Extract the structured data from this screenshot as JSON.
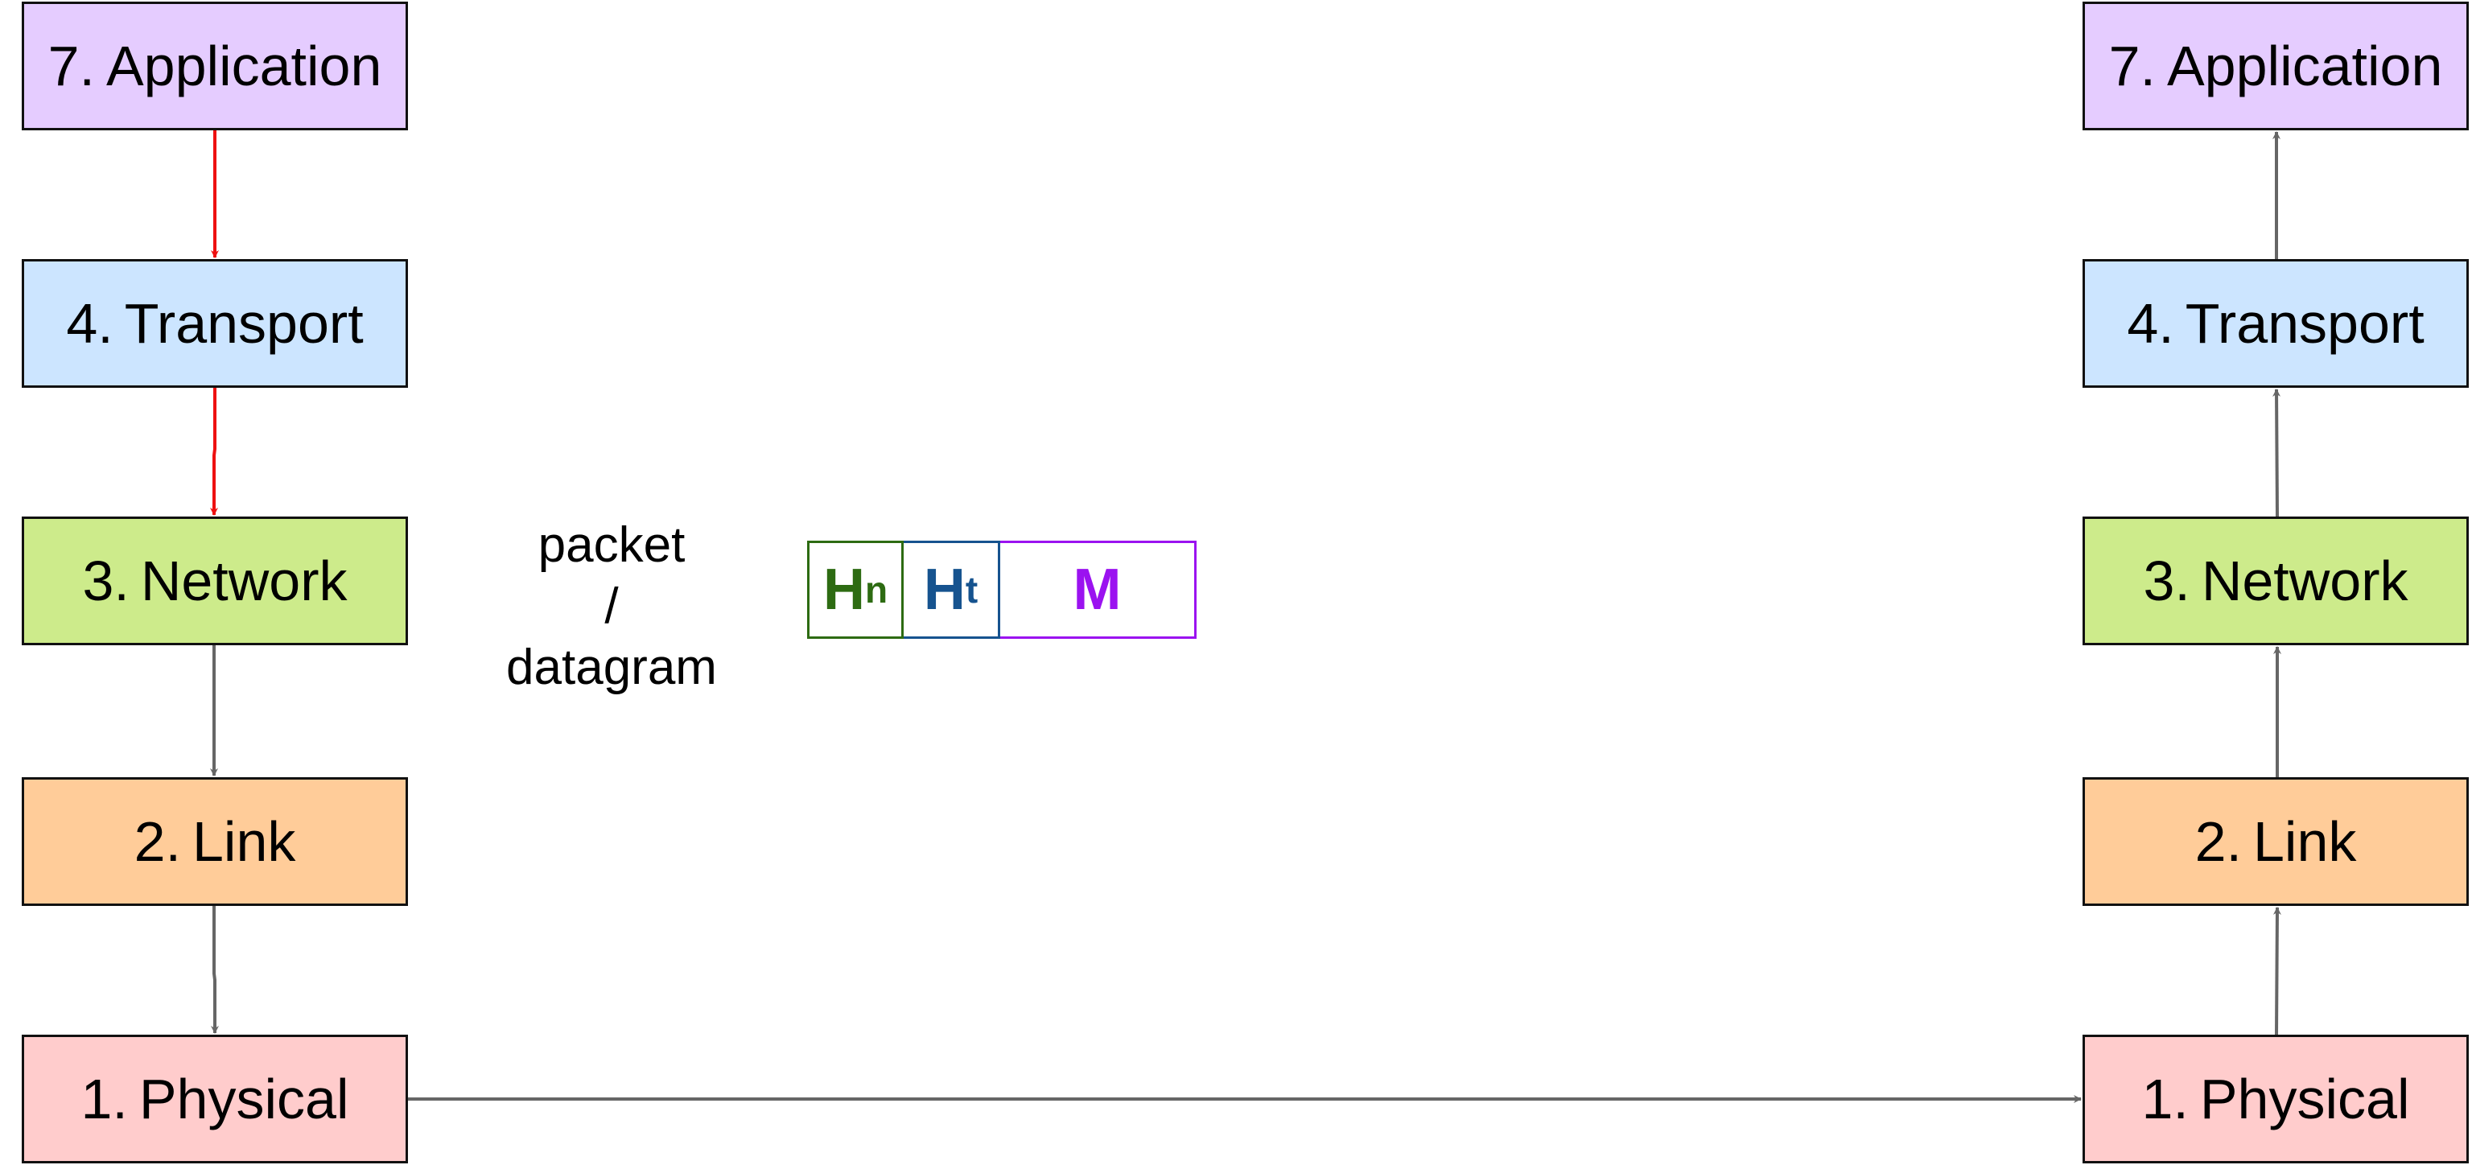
{
  "left_stack": {
    "application": {
      "num": "7.",
      "label": "Application"
    },
    "transport": {
      "num": "4.",
      "label": "Transport"
    },
    "network": {
      "num": "3.",
      "label": "Network"
    },
    "link": {
      "num": "2.",
      "label": "Link"
    },
    "physical": {
      "num": "1.",
      "label": "Physical"
    }
  },
  "right_stack": {
    "application": {
      "num": "7.",
      "label": "Application"
    },
    "transport": {
      "num": "4.",
      "label": "Transport"
    },
    "network": {
      "num": "3.",
      "label": "Network"
    },
    "link": {
      "num": "2.",
      "label": "Link"
    },
    "physical": {
      "num": "1.",
      "label": "Physical"
    }
  },
  "caption": {
    "line1": "packet",
    "line2": "/",
    "line3": "datagram"
  },
  "packet": {
    "network_header": {
      "letter": "H",
      "sub": "n"
    },
    "transport_header": {
      "letter": "H",
      "sub": "t"
    },
    "message": "M"
  },
  "colors": {
    "application": "#e5ccff",
    "transport": "#cce5ff",
    "network": "#cdeb8b",
    "link": "#ffcc99",
    "physical": "#ffcccc",
    "active_arrow": "#ee1111",
    "arrow": "#666666"
  }
}
